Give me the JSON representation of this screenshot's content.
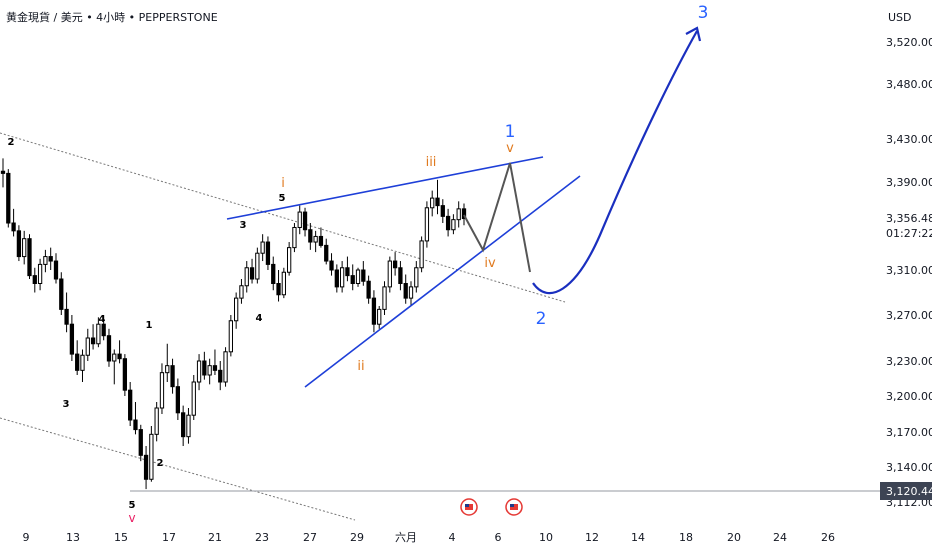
{
  "header": {
    "title": "黄金現貨 / 美元 • 4小時 • PEPPERSTONE",
    "currency": "USD"
  },
  "colors": {
    "up": "#ffffff",
    "down": "#000000",
    "wick": "#000000",
    "blue_wave": "#1e3fd8",
    "label_blue": "#2962ff",
    "label_orange": "#e07a1f",
    "label_red": "#e91e63",
    "projection_gray": "#555555",
    "price_line": "#9598a1",
    "price_tag_bg": "#3d4454"
  },
  "chart_data": {
    "type": "candlestick",
    "symbol": "XAUUSD",
    "timeframe": "4h",
    "x_ticks": [
      "9",
      "13",
      "15",
      "17",
      "21",
      "23",
      "27",
      "29",
      "六月",
      "4",
      "6",
      "10",
      "12",
      "14",
      "18",
      "20",
      "24",
      "26"
    ],
    "y_ticks": [
      "3,520.00",
      "3,480.00",
      "3,430.00",
      "3,390.00",
      "3,310.00",
      "3,270.00",
      "3,230.00",
      "3,200.00",
      "3,170.00",
      "3,140.00",
      "3,112.00"
    ],
    "y_tick_values": [
      3520,
      3480,
      3430,
      3390,
      3310,
      3270,
      3230,
      3200,
      3170,
      3140,
      3112
    ],
    "current_price": "3,356.48",
    "countdown": "01:27:22",
    "horizontal_line": "3,120.44",
    "horizontal_line_value": 3120.44,
    "ylim": [
      3100,
      3545
    ],
    "candles": [
      [
        3400,
        3412,
        3385,
        3398
      ],
      [
        3398,
        3402,
        3348,
        3352
      ],
      [
        3352,
        3365,
        3340,
        3345
      ],
      [
        3345,
        3350,
        3318,
        3322
      ],
      [
        3322,
        3345,
        3315,
        3338
      ],
      [
        3338,
        3342,
        3302,
        3305
      ],
      [
        3305,
        3312,
        3290,
        3298
      ],
      [
        3298,
        3320,
        3292,
        3315
      ],
      [
        3315,
        3328,
        3308,
        3322
      ],
      [
        3322,
        3330,
        3310,
        3318
      ],
      [
        3318,
        3325,
        3298,
        3302
      ],
      [
        3302,
        3308,
        3270,
        3275
      ],
      [
        3275,
        3290,
        3255,
        3262
      ],
      [
        3262,
        3270,
        3230,
        3236
      ],
      [
        3236,
        3248,
        3218,
        3222
      ],
      [
        3222,
        3240,
        3212,
        3235
      ],
      [
        3235,
        3258,
        3230,
        3250
      ],
      [
        3250,
        3262,
        3240,
        3245
      ],
      [
        3245,
        3268,
        3242,
        3262
      ],
      [
        3262,
        3270,
        3248,
        3252
      ],
      [
        3252,
        3258,
        3225,
        3230
      ],
      [
        3230,
        3240,
        3210,
        3236
      ],
      [
        3236,
        3248,
        3228,
        3232
      ],
      [
        3232,
        3236,
        3200,
        3205
      ],
      [
        3205,
        3212,
        3175,
        3180
      ],
      [
        3180,
        3195,
        3168,
        3172
      ],
      [
        3172,
        3176,
        3145,
        3150
      ],
      [
        3150,
        3158,
        3122,
        3130
      ],
      [
        3130,
        3175,
        3128,
        3168
      ],
      [
        3168,
        3195,
        3162,
        3190
      ],
      [
        3190,
        3228,
        3185,
        3220
      ],
      [
        3220,
        3245,
        3212,
        3226
      ],
      [
        3226,
        3232,
        3202,
        3208
      ],
      [
        3208,
        3215,
        3180,
        3186
      ],
      [
        3186,
        3192,
        3158,
        3166
      ],
      [
        3166,
        3190,
        3160,
        3184
      ],
      [
        3184,
        3218,
        3180,
        3212
      ],
      [
        3212,
        3236,
        3205,
        3230
      ],
      [
        3230,
        3238,
        3214,
        3218
      ],
      [
        3218,
        3232,
        3210,
        3226
      ],
      [
        3226,
        3240,
        3218,
        3222
      ],
      [
        3222,
        3230,
        3205,
        3212
      ],
      [
        3212,
        3242,
        3208,
        3238
      ],
      [
        3238,
        3270,
        3234,
        3265
      ],
      [
        3265,
        3290,
        3258,
        3285
      ],
      [
        3285,
        3302,
        3280,
        3296
      ],
      [
        3296,
        3318,
        3290,
        3312
      ],
      [
        3312,
        3320,
        3298,
        3302
      ],
      [
        3302,
        3330,
        3298,
        3325
      ],
      [
        3325,
        3342,
        3318,
        3335
      ],
      [
        3335,
        3340,
        3310,
        3315
      ],
      [
        3315,
        3322,
        3292,
        3298
      ],
      [
        3298,
        3310,
        3282,
        3288
      ],
      [
        3288,
        3312,
        3285,
        3308
      ],
      [
        3308,
        3335,
        3305,
        3330
      ],
      [
        3330,
        3352,
        3326,
        3348
      ],
      [
        3348,
        3368,
        3342,
        3362
      ],
      [
        3362,
        3366,
        3340,
        3346
      ],
      [
        3346,
        3352,
        3328,
        3335
      ],
      [
        3335,
        3345,
        3326,
        3340
      ],
      [
        3340,
        3348,
        3330,
        3332
      ],
      [
        3332,
        3338,
        3315,
        3318
      ],
      [
        3318,
        3325,
        3305,
        3310
      ],
      [
        3310,
        3315,
        3290,
        3295
      ],
      [
        3295,
        3318,
        3290,
        3312
      ],
      [
        3312,
        3322,
        3300,
        3305
      ],
      [
        3305,
        3315,
        3292,
        3298
      ],
      [
        3298,
        3312,
        3295,
        3310
      ],
      [
        3310,
        3318,
        3296,
        3300
      ],
      [
        3300,
        3305,
        3280,
        3285
      ],
      [
        3285,
        3292,
        3255,
        3262
      ],
      [
        3262,
        3278,
        3258,
        3275
      ],
      [
        3275,
        3300,
        3270,
        3295
      ],
      [
        3295,
        3322,
        3290,
        3318
      ],
      [
        3318,
        3326,
        3305,
        3312
      ],
      [
        3312,
        3318,
        3292,
        3298
      ],
      [
        3298,
        3306,
        3280,
        3285
      ],
      [
        3285,
        3300,
        3278,
        3295
      ],
      [
        3295,
        3318,
        3290,
        3312
      ],
      [
        3312,
        3340,
        3308,
        3336
      ],
      [
        3336,
        3372,
        3330,
        3366
      ],
      [
        3366,
        3382,
        3358,
        3375
      ],
      [
        3375,
        3392,
        3360,
        3368
      ],
      [
        3368,
        3374,
        3352,
        3358
      ],
      [
        3358,
        3365,
        3340,
        3346
      ],
      [
        3346,
        3360,
        3342,
        3355
      ],
      [
        3355,
        3372,
        3348,
        3365
      ],
      [
        3365,
        3370,
        3350,
        3356
      ]
    ],
    "waves": {
      "blue_wave": [
        [
          3122,
          "start"
        ],
        [
          3298,
          "2"
        ],
        [
          3530,
          "3"
        ]
      ],
      "labels_black": [
        "2",
        "3",
        "4",
        "5",
        "1",
        "2",
        "3",
        "4",
        "5"
      ],
      "labels_orange": [
        "i",
        "ii",
        "iii",
        "iv",
        "v"
      ],
      "labels_blue": [
        "1",
        "2",
        "3"
      ],
      "labels_red": [
        "v"
      ]
    }
  }
}
